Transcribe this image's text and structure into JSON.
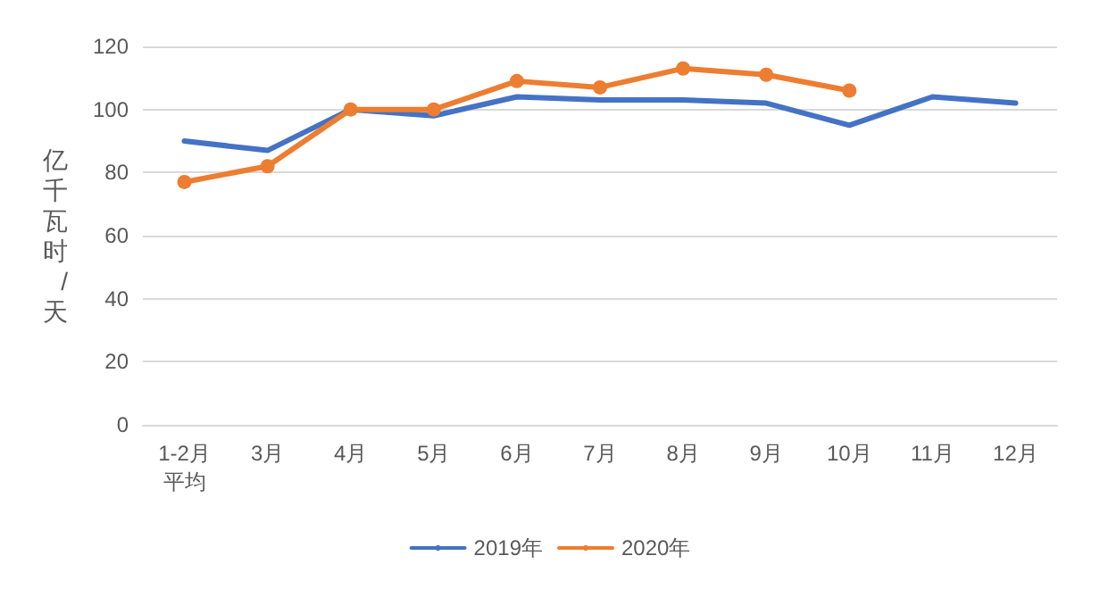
{
  "chart_data": {
    "type": "line",
    "ylabel": "亿千瓦时/天",
    "categories": [
      "1-2月平均",
      "3月",
      "4月",
      "5月",
      "6月",
      "7月",
      "8月",
      "9月",
      "10月",
      "11月",
      "12月"
    ],
    "series": [
      {
        "name": "2019年",
        "color": "#4472c4",
        "marker": "none",
        "values": [
          90,
          87,
          100,
          98,
          104,
          103,
          103,
          102,
          95,
          104,
          102
        ]
      },
      {
        "name": "2020年",
        "color": "#ed7d31",
        "marker": "circle",
        "values": [
          77,
          82,
          100,
          100,
          109,
          107,
          113,
          111,
          106,
          null,
          null
        ]
      }
    ],
    "ylim": [
      0,
      120
    ],
    "yticks": [
      0,
      20,
      40,
      60,
      80,
      100,
      120
    ],
    "grid": "y",
    "legend": "bottom",
    "line_style": "solid"
  }
}
